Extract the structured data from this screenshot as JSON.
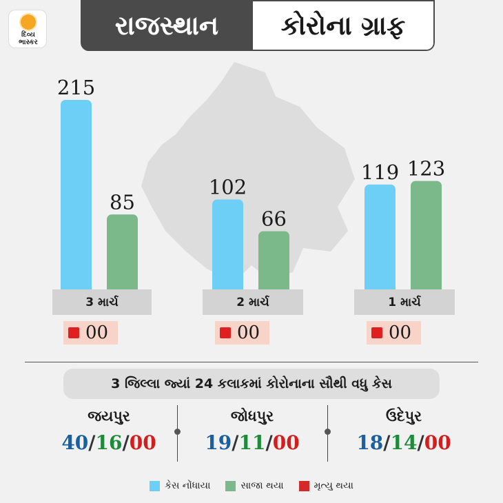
{
  "logo": {
    "line1": "દિવ્ય",
    "line2": "ભાસ્કર"
  },
  "header": {
    "left_title": "રાજસ્થાન",
    "right_title": "કોરોના ગ્રાફ"
  },
  "colors": {
    "cases": "#6ecff6",
    "recovered": "#7bb88a",
    "deaths": "#e02020"
  },
  "chart_data": {
    "type": "bar",
    "categories": [
      "3 માર્ચ",
      "2 માર્ચ",
      "1 માર્ચ"
    ],
    "series": [
      {
        "name": "કેસ નોંધાયા",
        "values": [
          215,
          102,
          119
        ]
      },
      {
        "name": "સાજા થયા",
        "values": [
          85,
          66,
          123
        ]
      },
      {
        "name": "મૃત્યુ થયા",
        "values": [
          "00",
          "00",
          "00"
        ]
      }
    ],
    "ylim": [
      0,
      215
    ],
    "legend_position": "bottom"
  },
  "subtitle": "3 જિલ્લા જ્યાં 24 કલાકમાં કોરોનાના સૌથી વધુ કેસ",
  "districts": [
    {
      "name": "જયપુર",
      "cases": "40",
      "recovered": "16",
      "deaths": "00"
    },
    {
      "name": "જોધપુર",
      "cases": "19",
      "recovered": "11",
      "deaths": "00"
    },
    {
      "name": "ઉદેપુર",
      "cases": "18",
      "recovered": "14",
      "deaths": "00"
    }
  ],
  "separator": "/",
  "legend": [
    {
      "label": "કેસ નોંધાયા",
      "color": "#6ecff6"
    },
    {
      "label": "સાજા થયા",
      "color": "#7bb88a"
    },
    {
      "label": "મૃત્યુ થયા",
      "color": "#d42a2a"
    }
  ]
}
